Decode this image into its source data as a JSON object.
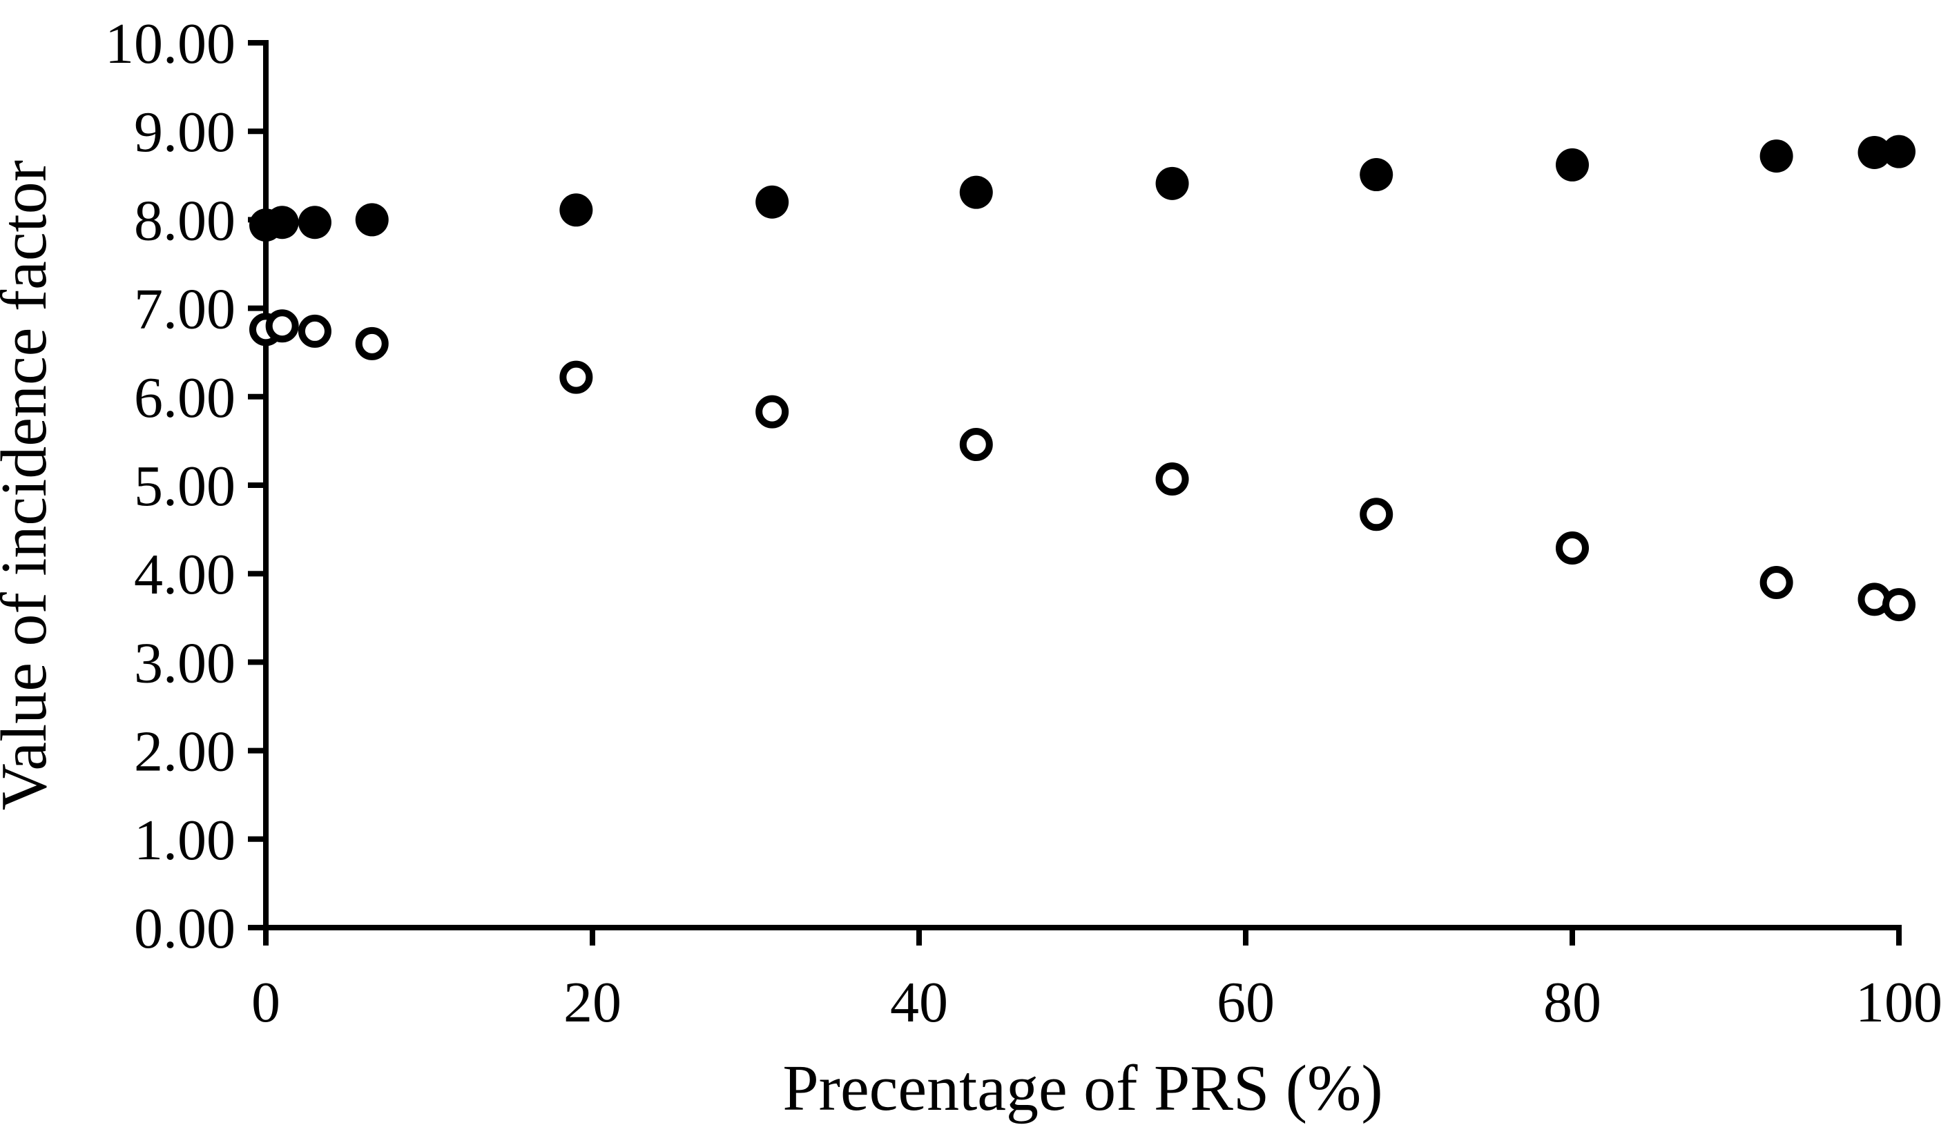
{
  "figure": {
    "background_color": "#ffffff",
    "foreground_color": "#000000"
  },
  "chart_data": {
    "type": "scatter",
    "title": "",
    "xlabel": "Precentage of PRS (%)",
    "ylabel": "Value of incidence factor",
    "xlim": [
      0,
      100
    ],
    "ylim": [
      0,
      10
    ],
    "x_ticks": [
      0,
      20,
      40,
      60,
      80,
      100
    ],
    "x_tick_labels": [
      "0",
      "20",
      "40",
      "60",
      "80",
      "100"
    ],
    "y_ticks": [
      0,
      1,
      2,
      3,
      4,
      5,
      6,
      7,
      8,
      9,
      10
    ],
    "y_tick_labels": [
      "0.00",
      "1.00",
      "2.00",
      "3.00",
      "4.00",
      "5.00",
      "6.00",
      "7.00",
      "8.00",
      "9.00",
      "10.00"
    ],
    "grid": false,
    "legend_position": "none",
    "marker_color": "#000000",
    "open_marker_fill": "#ffffff",
    "series": [
      {
        "name": "filled-circles",
        "marker": "filled-circle",
        "x": [
          0,
          1,
          3,
          6.5,
          19,
          31,
          43.5,
          55.5,
          68,
          80,
          92.5,
          98.5,
          100
        ],
        "y": [
          7.94,
          7.97,
          7.97,
          8.0,
          8.11,
          8.2,
          8.31,
          8.41,
          8.51,
          8.62,
          8.72,
          8.76,
          8.77
        ]
      },
      {
        "name": "open-circles",
        "marker": "open-circle",
        "x": [
          0,
          1,
          3,
          6.5,
          19,
          31,
          43.5,
          55.5,
          68,
          80,
          92.5,
          98.5,
          100
        ],
        "y": [
          6.76,
          6.8,
          6.74,
          6.6,
          6.22,
          5.83,
          5.46,
          5.07,
          4.67,
          4.29,
          3.9,
          3.71,
          3.65
        ]
      }
    ]
  }
}
